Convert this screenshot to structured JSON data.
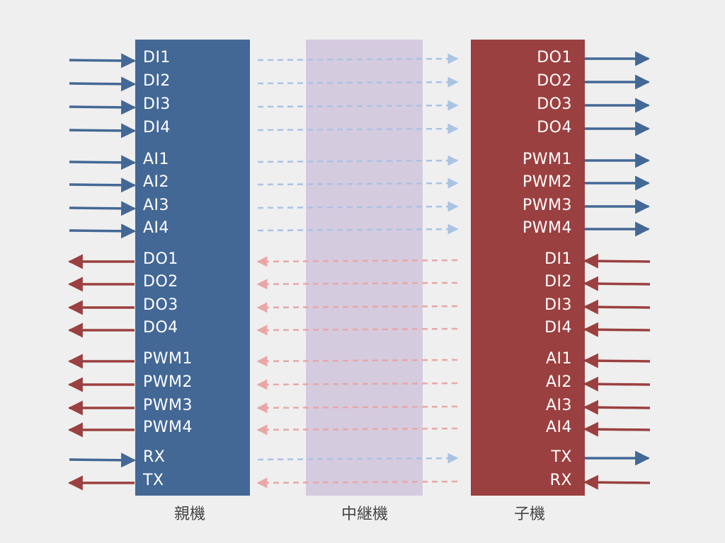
{
  "diagram": {
    "parent": {
      "label": "親機",
      "color": "#436896",
      "signals": [
        {
          "name": "DI1",
          "dir": "in"
        },
        {
          "name": "DI2",
          "dir": "in"
        },
        {
          "name": "DI3",
          "dir": "in"
        },
        {
          "name": "DI4",
          "dir": "in"
        },
        {
          "name": "AI1",
          "dir": "in"
        },
        {
          "name": "AI2",
          "dir": "in"
        },
        {
          "name": "AI3",
          "dir": "in"
        },
        {
          "name": "AI4",
          "dir": "in"
        },
        {
          "name": "DO1",
          "dir": "out"
        },
        {
          "name": "DO2",
          "dir": "out"
        },
        {
          "name": "DO3",
          "dir": "out"
        },
        {
          "name": "DO4",
          "dir": "out"
        },
        {
          "name": "PWM1",
          "dir": "out"
        },
        {
          "name": "PWM2",
          "dir": "out"
        },
        {
          "name": "PWM3",
          "dir": "out"
        },
        {
          "name": "PWM4",
          "dir": "out"
        },
        {
          "name": "RX",
          "dir": "in"
        },
        {
          "name": "TX",
          "dir": "out"
        }
      ]
    },
    "relay": {
      "label": "中継機",
      "color": "#d5cbdf"
    },
    "child": {
      "label": "子機",
      "color": "#9b4040",
      "signals": [
        {
          "name": "DO1",
          "dir": "out"
        },
        {
          "name": "DO2",
          "dir": "out"
        },
        {
          "name": "DO3",
          "dir": "out"
        },
        {
          "name": "DO4",
          "dir": "out"
        },
        {
          "name": "PWM1",
          "dir": "out"
        },
        {
          "name": "PWM2",
          "dir": "out"
        },
        {
          "name": "PWM3",
          "dir": "out"
        },
        {
          "name": "PWM4",
          "dir": "out"
        },
        {
          "name": "DI1",
          "dir": "in"
        },
        {
          "name": "DI2",
          "dir": "in"
        },
        {
          "name": "DI3",
          "dir": "in"
        },
        {
          "name": "DI4",
          "dir": "in"
        },
        {
          "name": "AI1",
          "dir": "in"
        },
        {
          "name": "AI2",
          "dir": "in"
        },
        {
          "name": "AI3",
          "dir": "in"
        },
        {
          "name": "AI4",
          "dir": "in"
        },
        {
          "name": "TX",
          "dir": "out"
        },
        {
          "name": "RX",
          "dir": "in"
        }
      ]
    },
    "colors": {
      "input_arrow": "#436896",
      "output_arrow": "#9b4040",
      "relay_forward": "#a9c3e4",
      "relay_backward": "#e8a7a7",
      "label_text": "#ffffff",
      "caption_text": "#444444"
    }
  }
}
